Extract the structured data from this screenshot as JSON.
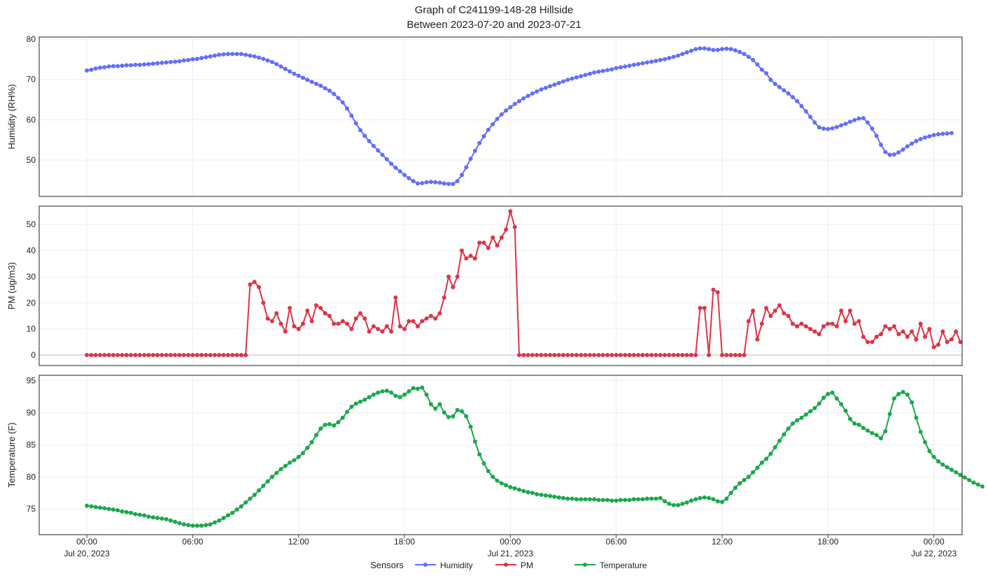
{
  "title_line1": "Graph of C241199-148-28 Hillside",
  "title_line2": "Between 2023-07-20 and 2023-07-21",
  "legend": {
    "title": "Sensors",
    "items": [
      {
        "label": "Humidity",
        "color": "#636EFA"
      },
      {
        "label": "PM",
        "color": "#DC3545"
      },
      {
        "label": "Temperature",
        "color": "#1AA84A"
      }
    ]
  },
  "x_axis": {
    "range_hours": [
      -2.7,
      49.6
    ],
    "ticks": [
      {
        "hour": 0,
        "line1": "00:00",
        "line2": "Jul 20, 2023"
      },
      {
        "hour": 6,
        "line1": "06:00",
        "line2": ""
      },
      {
        "hour": 12,
        "line1": "12:00",
        "line2": ""
      },
      {
        "hour": 18,
        "line1": "18:00",
        "line2": ""
      },
      {
        "hour": 24,
        "line1": "00:00",
        "line2": "Jul 21, 2023"
      },
      {
        "hour": 30,
        "line1": "06:00",
        "line2": ""
      },
      {
        "hour": 36,
        "line1": "12:00",
        "line2": ""
      },
      {
        "hour": 42,
        "line1": "18:00",
        "line2": ""
      },
      {
        "hour": 48,
        "line1": "00:00",
        "line2": "Jul 22, 2023"
      }
    ]
  },
  "chart_data": [
    {
      "type": "line",
      "name": "Humidity",
      "ylabel": "Humidity (RH%)",
      "ylim": [
        41,
        80.5
      ],
      "yticks": [
        50,
        60,
        70,
        80
      ],
      "color": "#636EFA",
      "x_start_hour": 0,
      "x_step_hours": 0.25,
      "values": [
        72.2,
        72.4,
        72.7,
        72.9,
        73.0,
        73.2,
        73.3,
        73.3,
        73.4,
        73.5,
        73.5,
        73.6,
        73.6,
        73.7,
        73.8,
        73.9,
        74.0,
        74.1,
        74.2,
        74.3,
        74.4,
        74.5,
        74.7,
        74.8,
        75.0,
        75.1,
        75.3,
        75.5,
        75.7,
        75.9,
        76.1,
        76.2,
        76.3,
        76.3,
        76.3,
        76.3,
        76.1,
        75.9,
        75.7,
        75.4,
        75.1,
        74.7,
        74.3,
        73.8,
        73.2,
        72.6,
        72.0,
        71.4,
        70.9,
        70.4,
        69.9,
        69.4,
        68.9,
        68.4,
        67.8,
        67.2,
        66.4,
        65.4,
        64.3,
        62.8,
        61.0,
        59.1,
        57.4,
        56.0,
        54.7,
        53.5,
        52.4,
        51.3,
        50.2,
        49.1,
        48.1,
        47.2,
        46.3,
        45.5,
        44.8,
        44.2,
        44.3,
        44.5,
        44.6,
        44.5,
        44.4,
        44.2,
        44.1,
        44.1,
        44.8,
        46.3,
        48.2,
        50.3,
        52.3,
        54.2,
        55.9,
        57.5,
        58.9,
        60.2,
        61.3,
        62.3,
        63.1,
        63.9,
        64.6,
        65.3,
        65.9,
        66.5,
        67.0,
        67.5,
        67.9,
        68.3,
        68.7,
        69.1,
        69.5,
        69.9,
        70.2,
        70.5,
        70.8,
        71.1,
        71.4,
        71.7,
        71.9,
        72.1,
        72.3,
        72.5,
        72.8,
        73.0,
        73.2,
        73.4,
        73.6,
        73.8,
        74.0,
        74.2,
        74.4,
        74.6,
        74.8,
        75.0,
        75.3,
        75.6,
        75.9,
        76.3,
        76.7,
        77.1,
        77.5,
        77.7,
        77.7,
        77.5,
        77.3,
        77.3,
        77.5,
        77.6,
        77.5,
        77.2,
        76.8,
        76.3,
        75.6,
        74.8,
        73.7,
        72.4,
        71.5,
        69.9,
        68.9,
        68.1,
        67.3,
        66.5,
        65.6,
        64.6,
        63.4,
        62.1,
        60.7,
        59.3,
        58.1,
        57.8,
        57.7,
        57.9,
        58.2,
        58.6,
        59.0,
        59.5,
        59.9,
        60.3,
        60.4,
        59.3,
        57.8,
        56.0,
        53.8,
        52.0,
        51.3,
        51.4,
        51.9,
        52.6,
        53.4,
        54.1,
        54.7,
        55.2,
        55.6,
        55.9,
        56.2,
        56.4,
        56.5,
        56.6,
        56.7
      ]
    },
    {
      "type": "line",
      "name": "PM",
      "ylabel": "PM (ug/m3)",
      "ylim": [
        -4,
        57
      ],
      "yticks": [
        0,
        10,
        20,
        30,
        40,
        50
      ],
      "color": "#DC3545",
      "x_start_hour": 0,
      "x_step_hours": 0.25,
      "values": [
        0,
        0,
        0,
        0,
        0,
        0,
        0,
        0,
        0,
        0,
        0,
        0,
        0,
        0,
        0,
        0,
        0,
        0,
        0,
        0,
        0,
        0,
        0,
        0,
        0,
        0,
        0,
        0,
        0,
        0,
        0,
        0,
        0,
        0,
        0,
        0,
        0,
        27,
        28,
        26,
        20,
        14,
        13,
        16,
        12,
        9,
        18,
        11,
        10,
        12,
        17,
        13,
        19,
        18,
        16,
        15,
        12,
        12,
        13,
        12,
        10,
        14,
        16,
        14,
        9,
        11,
        10,
        9,
        11,
        9,
        22,
        11,
        10,
        13,
        13,
        11,
        13,
        14,
        15,
        14,
        16,
        22,
        30,
        26,
        30,
        40,
        37,
        38,
        37,
        43,
        43,
        41,
        45,
        42,
        45,
        48,
        55,
        49,
        0,
        0,
        0,
        0,
        0,
        0,
        0,
        0,
        0,
        0,
        0,
        0,
        0,
        0,
        0,
        0,
        0,
        0,
        0,
        0,
        0,
        0,
        0,
        0,
        0,
        0,
        0,
        0,
        0,
        0,
        0,
        0,
        0,
        0,
        0,
        0,
        0,
        0,
        0,
        0,
        0,
        18,
        18,
        0,
        25,
        24,
        0,
        0,
        0,
        0,
        0,
        0,
        13,
        17,
        6,
        12,
        18,
        15,
        17,
        19,
        16,
        15,
        12,
        11,
        12,
        11,
        10,
        9,
        8,
        11,
        12,
        12,
        11,
        17,
        13,
        17,
        12,
        13,
        7,
        5,
        5,
        7,
        8,
        11,
        10,
        11,
        8,
        9,
        7,
        9,
        6,
        12,
        7,
        10,
        3,
        4,
        9,
        5,
        6,
        9,
        5
      ]
    },
    {
      "type": "line",
      "name": "Temperature",
      "ylabel": "Temperature (F)",
      "ylim": [
        71,
        95.8
      ],
      "yticks": [
        75,
        80,
        85,
        90,
        95
      ],
      "color": "#1AA84A",
      "x_start_hour": 0,
      "x_step_hours": 0.25,
      "values": [
        75.5,
        75.4,
        75.3,
        75.2,
        75.1,
        75.0,
        74.9,
        74.8,
        74.6,
        74.5,
        74.4,
        74.2,
        74.1,
        74.0,
        73.8,
        73.7,
        73.6,
        73.5,
        73.4,
        73.2,
        73.0,
        72.8,
        72.6,
        72.5,
        72.4,
        72.4,
        72.4,
        72.5,
        72.6,
        72.9,
        73.2,
        73.6,
        74.0,
        74.4,
        74.9,
        75.4,
        76.0,
        76.6,
        77.2,
        77.9,
        78.6,
        79.3,
        80.0,
        80.6,
        81.2,
        81.7,
        82.2,
        82.6,
        83.1,
        83.7,
        84.5,
        85.4,
        86.5,
        87.5,
        88.1,
        88.2,
        88.0,
        88.5,
        89.2,
        90.1,
        90.9,
        91.4,
        91.7,
        92.0,
        92.4,
        92.8,
        93.1,
        93.3,
        93.4,
        93.1,
        92.6,
        92.4,
        92.8,
        93.3,
        93.8,
        93.7,
        93.9,
        92.8,
        91.3,
        90.6,
        91.3,
        90.0,
        89.3,
        89.4,
        90.4,
        90.2,
        89.4,
        87.8,
        85.5,
        83.5,
        82.1,
        80.9,
        80.0,
        79.4,
        79.0,
        78.7,
        78.4,
        78.2,
        78.0,
        77.8,
        77.6,
        77.5,
        77.3,
        77.2,
        77.1,
        77.0,
        76.9,
        76.8,
        76.7,
        76.6,
        76.6,
        76.5,
        76.5,
        76.5,
        76.5,
        76.5,
        76.4,
        76.4,
        76.4,
        76.3,
        76.3,
        76.4,
        76.4,
        76.4,
        76.5,
        76.5,
        76.5,
        76.6,
        76.6,
        76.6,
        76.7,
        76.2,
        75.8,
        75.6,
        75.6,
        75.8,
        76.0,
        76.3,
        76.5,
        76.7,
        76.8,
        76.7,
        76.5,
        76.2,
        76.1,
        76.6,
        77.5,
        78.3,
        79.0,
        79.5,
        80.0,
        80.7,
        81.4,
        82.2,
        82.8,
        83.6,
        84.6,
        85.6,
        86.6,
        87.5,
        88.3,
        88.8,
        89.2,
        89.7,
        90.2,
        90.7,
        91.4,
        92.3,
        92.9,
        93.1,
        92.2,
        91.3,
        90.3,
        89.0,
        88.3,
        88.1,
        87.6,
        87.2,
        86.8,
        86.5,
        86.0,
        87.1,
        89.8,
        92.2,
        92.9,
        93.2,
        92.8,
        91.6,
        89.2,
        87.0,
        85.4,
        84.0,
        83.1,
        82.4,
        81.9,
        81.5,
        81.1,
        80.7,
        80.3,
        79.9,
        79.5,
        79.1,
        78.8,
        78.5
      ]
    }
  ]
}
